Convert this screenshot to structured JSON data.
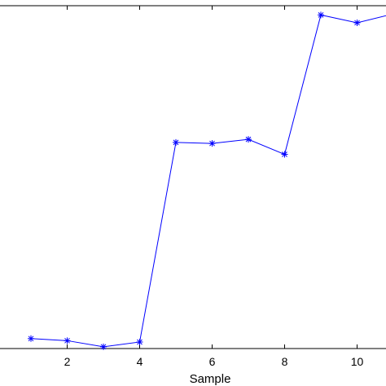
{
  "chart_data": {
    "type": "line",
    "title": "",
    "xlabel": "Sample",
    "ylabel": "",
    "xlim": [
      0,
      11
    ],
    "ylim": [
      0,
      10
    ],
    "x_ticks": [
      2,
      4,
      6,
      8,
      10
    ],
    "x_tick_labels": [
      "2",
      "4",
      "6",
      "8",
      "10"
    ],
    "grid": false,
    "legend": "none",
    "series": [
      {
        "x": [
          1,
          2,
          3,
          4,
          5,
          6,
          7,
          8,
          9,
          10,
          11
        ],
        "y": [
          0.28,
          0.22,
          0.04,
          0.18,
          6.05,
          6.02,
          6.14,
          5.7,
          9.8,
          9.57,
          9.83
        ],
        "color": "#0000ff",
        "marker": "asterisk"
      }
    ]
  }
}
